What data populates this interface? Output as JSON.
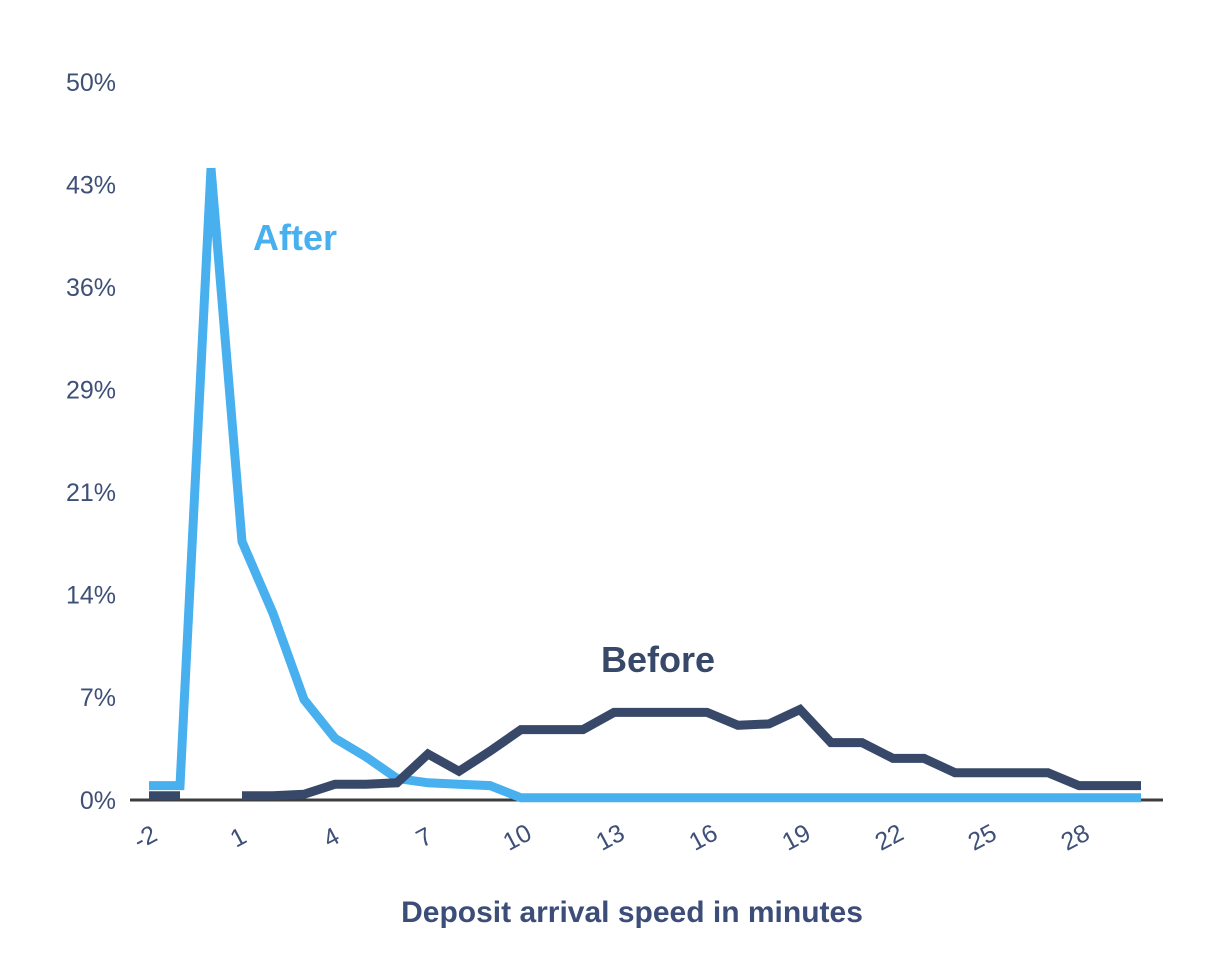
{
  "chart_data": {
    "type": "line",
    "title": "Deposit arrival speed in minutes",
    "xlabel": "Deposit arrival speed in minutes",
    "ylabel": "",
    "xlim": [
      -2,
      30
    ],
    "ylim": [
      0,
      50
    ],
    "grid": false,
    "legend_position": "inline-annotations",
    "axis_color": "#3d3d3d",
    "tick_color": "#3e4f78",
    "x": [
      -2,
      -1,
      0,
      1,
      2,
      3,
      4,
      5,
      6,
      7,
      8,
      9,
      10,
      11,
      12,
      13,
      14,
      15,
      16,
      17,
      18,
      19,
      20,
      21,
      22,
      23,
      24,
      25,
      26,
      27,
      28,
      29,
      30
    ],
    "x_tick_values": [
      -2,
      1,
      4,
      7,
      10,
      13,
      16,
      19,
      22,
      25,
      28
    ],
    "x_tick_labels": [
      "-2",
      "1",
      "4",
      "7",
      "10",
      "13",
      "16",
      "19",
      "22",
      "25",
      "28"
    ],
    "y_tick_values": [
      0,
      7.143,
      14.286,
      21.429,
      28.571,
      35.714,
      42.857,
      50
    ],
    "y_tick_labels": [
      "0%",
      "7%",
      "14%",
      "21%",
      "29%",
      "36%",
      "43%",
      "50%"
    ],
    "series": [
      {
        "name": "After",
        "color": "#48b0ef",
        "values": [
          1,
          1,
          44,
          18,
          13,
          7,
          4.3,
          3,
          1.5,
          1.2,
          1.1,
          1,
          0.15,
          0.15,
          0.15,
          0.15,
          0.15,
          0.15,
          0.15,
          0.15,
          0.15,
          0.15,
          0.15,
          0.15,
          0.15,
          0.15,
          0.15,
          0.15,
          0.15,
          0.15,
          0.15,
          0.15,
          0.15
        ]
      },
      {
        "name": "Before",
        "color": "#374869",
        "values": [
          0.3,
          0.3,
          null,
          0.3,
          0.3,
          0.4,
          1.1,
          1.1,
          1.2,
          3.2,
          2,
          3.4,
          4.9,
          4.9,
          4.9,
          6.1,
          6.1,
          6.1,
          6.1,
          5.2,
          5.3,
          6.3,
          4,
          4,
          2.9,
          2.9,
          1.9,
          1.9,
          1.9,
          1.9,
          1,
          1,
          1
        ]
      }
    ]
  }
}
